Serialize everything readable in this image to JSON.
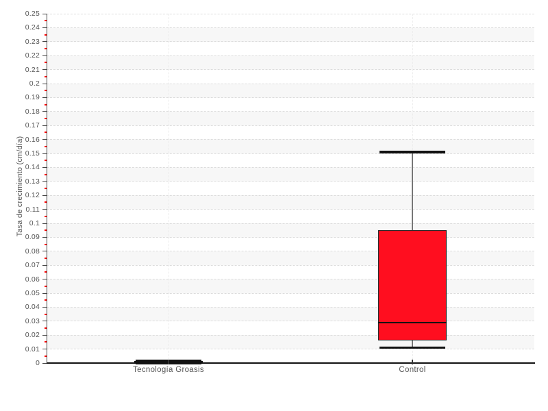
{
  "chart_data": {
    "type": "boxplot",
    "title": "",
    "xlabel": "",
    "ylabel": "Tasa de crecimiento (cm/día)",
    "ylim": [
      0,
      0.25
    ],
    "y_tick_step": 0.01,
    "y_tick_labels": [
      "0",
      "0.01",
      "0.02",
      "0.03",
      "0.04",
      "0.05",
      "0.06",
      "0.07",
      "0.08",
      "0.09",
      "0.1",
      "0.11",
      "0.12",
      "0.13",
      "0.14",
      "0.15",
      "0.16",
      "0.17",
      "0.18",
      "0.19",
      "0.2",
      "0.21",
      "0.22",
      "0.23",
      "0.24",
      "0.25"
    ],
    "categories": [
      "Tecnología Groasis",
      "Control"
    ],
    "series": [
      {
        "label": "Tecnología Groasis",
        "min": 0,
        "q1": 0,
        "median": 0.001,
        "q3": 0.0015,
        "max": 0.0015,
        "fill": "#111111"
      },
      {
        "label": "Control",
        "min": 0.011,
        "q1": 0.016,
        "median": 0.029,
        "q3": 0.095,
        "max": 0.151,
        "fill": "#ff0e1f"
      }
    ],
    "legend": "none",
    "grid": "horizontal dashed gridlines every 0.01 with alternating interlaced bands; dashed vertical line at each category center; red minor ticks every 0.005",
    "palette": {
      "box_red": "#ff0e1f",
      "box_black": "#111111",
      "gridline": "#dcdcdc",
      "category_gridline": "#ececec",
      "interlaced_band": "#f7f7f7",
      "minor_tick_red": "#ff0000",
      "major_tick": "#444444",
      "whisker": "#777777",
      "cap": "#111111",
      "median": "#111111",
      "tick_label": "#555555",
      "axis_spine": "#111111"
    }
  }
}
